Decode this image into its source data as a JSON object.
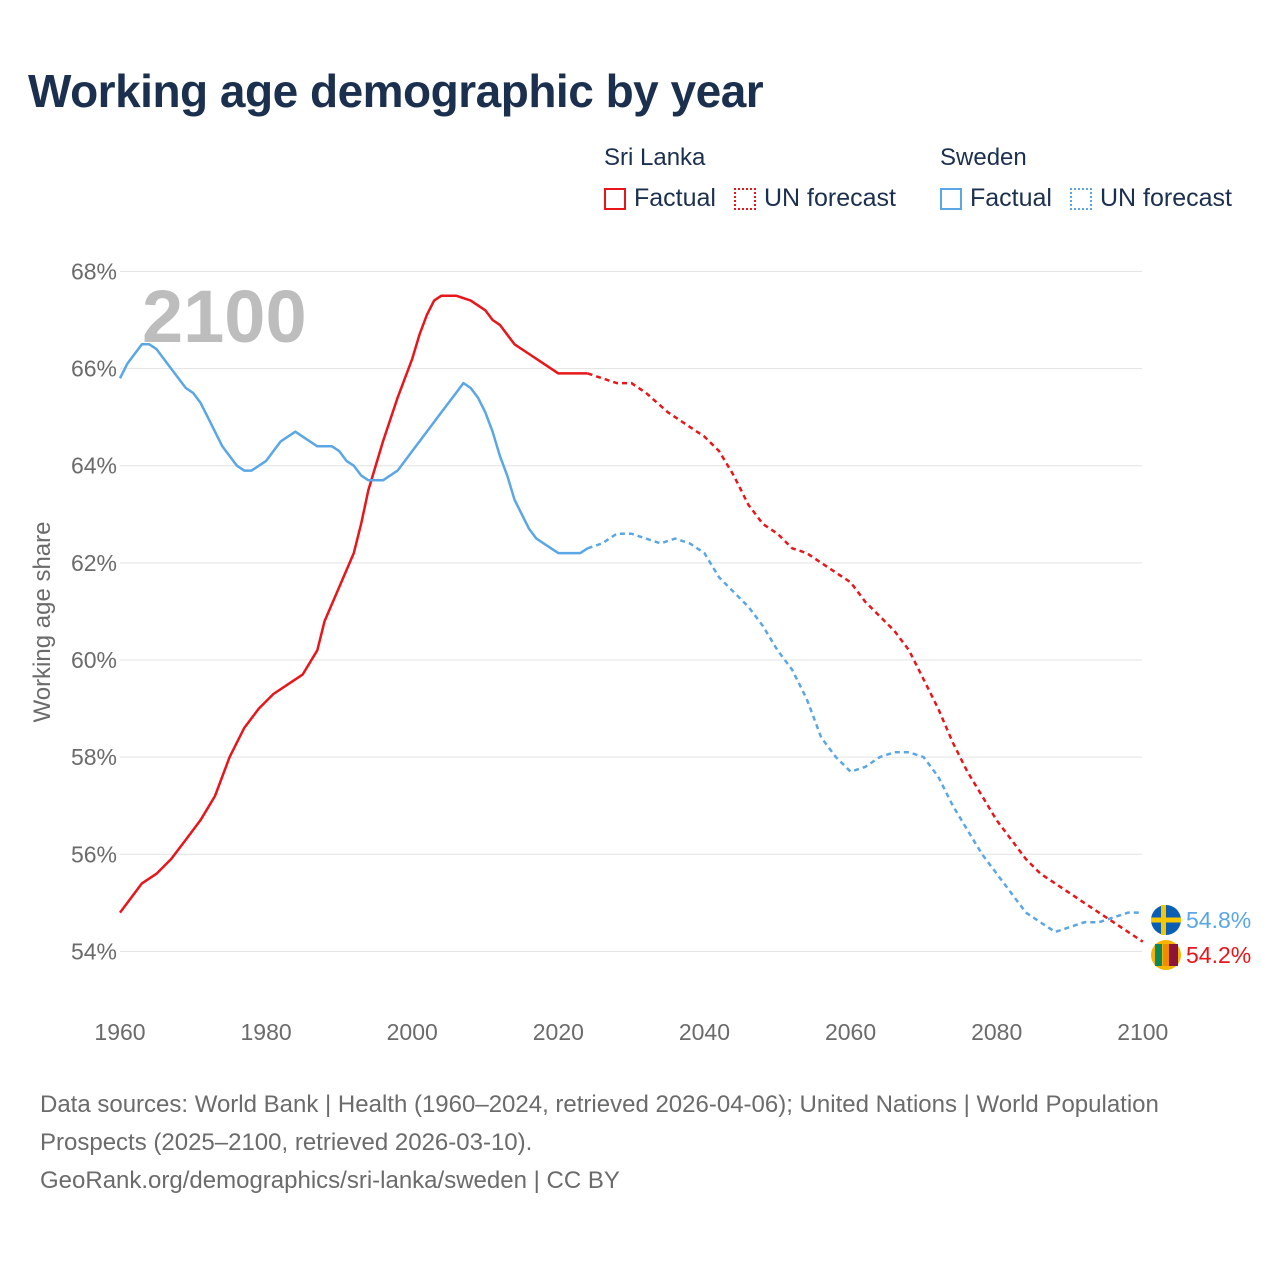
{
  "title": "Working age demographic by year",
  "legend": {
    "sri_lanka": {
      "country": "Sri Lanka",
      "factual": "Factual",
      "forecast": "UN forecast",
      "color": "#e8161b"
    },
    "sweden": {
      "country": "Sweden",
      "factual": "Factual",
      "forecast": "UN forecast",
      "color": "#5ba7e6"
    }
  },
  "footer": {
    "line1": "Data sources: World Bank | Health (1960–2024, retrieved 2026-04-06); United Nations | World Population Prospects (2025–2100, retrieved 2026-03-10).",
    "line2": "GeoRank.org/demographics/sri-lanka/sweden | CC BY"
  },
  "chart_data": {
    "type": "line",
    "ylabel": "Working age share",
    "xlabel": "",
    "year_label": "2100",
    "xlim": [
      1960,
      2104
    ],
    "ylim": [
      53,
      68.4
    ],
    "x_ticks": [
      1960,
      1980,
      2000,
      2020,
      2040,
      2060,
      2080,
      2100
    ],
    "y_ticks": [
      54,
      56,
      58,
      60,
      62,
      64,
      66,
      68
    ],
    "y_tick_suffix": "%",
    "grid": true,
    "series": [
      {
        "name": "Sri Lanka",
        "color": "#e8161b",
        "factual": [
          [
            1960,
            54.8
          ],
          [
            1963,
            55.4
          ],
          [
            1965,
            55.6
          ],
          [
            1967,
            55.9
          ],
          [
            1969,
            56.3
          ],
          [
            1971,
            56.7
          ],
          [
            1973,
            57.2
          ],
          [
            1975,
            58.0
          ],
          [
            1977,
            58.6
          ],
          [
            1979,
            59.0
          ],
          [
            1981,
            59.3
          ],
          [
            1983,
            59.5
          ],
          [
            1985,
            59.7
          ],
          [
            1987,
            60.2
          ],
          [
            1988,
            60.8
          ],
          [
            1990,
            61.5
          ],
          [
            1992,
            62.2
          ],
          [
            1993,
            62.8
          ],
          [
            1994,
            63.5
          ],
          [
            1996,
            64.5
          ],
          [
            1998,
            65.4
          ],
          [
            2000,
            66.2
          ],
          [
            2001,
            66.7
          ],
          [
            2002,
            67.1
          ],
          [
            2003,
            67.4
          ],
          [
            2004,
            67.5
          ],
          [
            2006,
            67.5
          ],
          [
            2008,
            67.4
          ],
          [
            2010,
            67.2
          ],
          [
            2011,
            67.0
          ],
          [
            2012,
            66.9
          ],
          [
            2014,
            66.5
          ],
          [
            2016,
            66.3
          ],
          [
            2018,
            66.1
          ],
          [
            2020,
            65.9
          ],
          [
            2022,
            65.9
          ],
          [
            2024,
            65.9
          ]
        ],
        "forecast": [
          [
            2024,
            65.9
          ],
          [
            2026,
            65.8
          ],
          [
            2028,
            65.7
          ],
          [
            2030,
            65.7
          ],
          [
            2032,
            65.5
          ],
          [
            2035,
            65.1
          ],
          [
            2038,
            64.8
          ],
          [
            2040,
            64.6
          ],
          [
            2042,
            64.3
          ],
          [
            2044,
            63.8
          ],
          [
            2046,
            63.2
          ],
          [
            2048,
            62.8
          ],
          [
            2050,
            62.6
          ],
          [
            2052,
            62.3
          ],
          [
            2054,
            62.2
          ],
          [
            2056,
            62.0
          ],
          [
            2058,
            61.8
          ],
          [
            2060,
            61.6
          ],
          [
            2062,
            61.2
          ],
          [
            2064,
            60.9
          ],
          [
            2066,
            60.6
          ],
          [
            2068,
            60.2
          ],
          [
            2070,
            59.6
          ],
          [
            2072,
            59.0
          ],
          [
            2074,
            58.3
          ],
          [
            2076,
            57.7
          ],
          [
            2078,
            57.2
          ],
          [
            2080,
            56.7
          ],
          [
            2082,
            56.3
          ],
          [
            2084,
            55.9
          ],
          [
            2086,
            55.6
          ],
          [
            2088,
            55.4
          ],
          [
            2090,
            55.2
          ],
          [
            2092,
            55.0
          ],
          [
            2094,
            54.8
          ],
          [
            2096,
            54.6
          ],
          [
            2098,
            54.4
          ],
          [
            2100,
            54.2
          ]
        ],
        "end_label": "54.2%",
        "end_value": 54.2
      },
      {
        "name": "Sweden",
        "color": "#5ba7e6",
        "factual": [
          [
            1960,
            65.8
          ],
          [
            1961,
            66.1
          ],
          [
            1963,
            66.5
          ],
          [
            1964,
            66.5
          ],
          [
            1965,
            66.4
          ],
          [
            1966,
            66.2
          ],
          [
            1968,
            65.8
          ],
          [
            1969,
            65.6
          ],
          [
            1970,
            65.5
          ],
          [
            1971,
            65.3
          ],
          [
            1972,
            65.0
          ],
          [
            1974,
            64.4
          ],
          [
            1976,
            64.0
          ],
          [
            1977,
            63.9
          ],
          [
            1978,
            63.9
          ],
          [
            1980,
            64.1
          ],
          [
            1982,
            64.5
          ],
          [
            1984,
            64.7
          ],
          [
            1986,
            64.5
          ],
          [
            1987,
            64.4
          ],
          [
            1989,
            64.4
          ],
          [
            1990,
            64.3
          ],
          [
            1991,
            64.1
          ],
          [
            1992,
            64.0
          ],
          [
            1993,
            63.8
          ],
          [
            1994,
            63.7
          ],
          [
            1996,
            63.7
          ],
          [
            1998,
            63.9
          ],
          [
            2000,
            64.3
          ],
          [
            2002,
            64.7
          ],
          [
            2004,
            65.1
          ],
          [
            2006,
            65.5
          ],
          [
            2007,
            65.7
          ],
          [
            2008,
            65.6
          ],
          [
            2009,
            65.4
          ],
          [
            2010,
            65.1
          ],
          [
            2011,
            64.7
          ],
          [
            2012,
            64.2
          ],
          [
            2013,
            63.8
          ],
          [
            2014,
            63.3
          ],
          [
            2015,
            63.0
          ],
          [
            2016,
            62.7
          ],
          [
            2017,
            62.5
          ],
          [
            2019,
            62.3
          ],
          [
            2020,
            62.2
          ],
          [
            2022,
            62.2
          ],
          [
            2023,
            62.2
          ],
          [
            2024,
            62.3
          ]
        ],
        "forecast": [
          [
            2024,
            62.3
          ],
          [
            2026,
            62.4
          ],
          [
            2028,
            62.6
          ],
          [
            2030,
            62.6
          ],
          [
            2032,
            62.5
          ],
          [
            2034,
            62.4
          ],
          [
            2036,
            62.5
          ],
          [
            2038,
            62.4
          ],
          [
            2040,
            62.2
          ],
          [
            2042,
            61.7
          ],
          [
            2044,
            61.4
          ],
          [
            2046,
            61.1
          ],
          [
            2048,
            60.7
          ],
          [
            2050,
            60.2
          ],
          [
            2052,
            59.8
          ],
          [
            2054,
            59.2
          ],
          [
            2056,
            58.4
          ],
          [
            2058,
            58.0
          ],
          [
            2060,
            57.7
          ],
          [
            2062,
            57.8
          ],
          [
            2064,
            58.0
          ],
          [
            2066,
            58.1
          ],
          [
            2068,
            58.1
          ],
          [
            2070,
            58.0
          ],
          [
            2072,
            57.6
          ],
          [
            2074,
            57.0
          ],
          [
            2076,
            56.5
          ],
          [
            2078,
            56.0
          ],
          [
            2080,
            55.6
          ],
          [
            2082,
            55.2
          ],
          [
            2084,
            54.8
          ],
          [
            2086,
            54.6
          ],
          [
            2088,
            54.4
          ],
          [
            2090,
            54.5
          ],
          [
            2092,
            54.6
          ],
          [
            2094,
            54.6
          ],
          [
            2096,
            54.7
          ],
          [
            2098,
            54.8
          ],
          [
            2100,
            54.8
          ]
        ],
        "end_label": "54.8%",
        "end_value": 54.8
      }
    ]
  }
}
